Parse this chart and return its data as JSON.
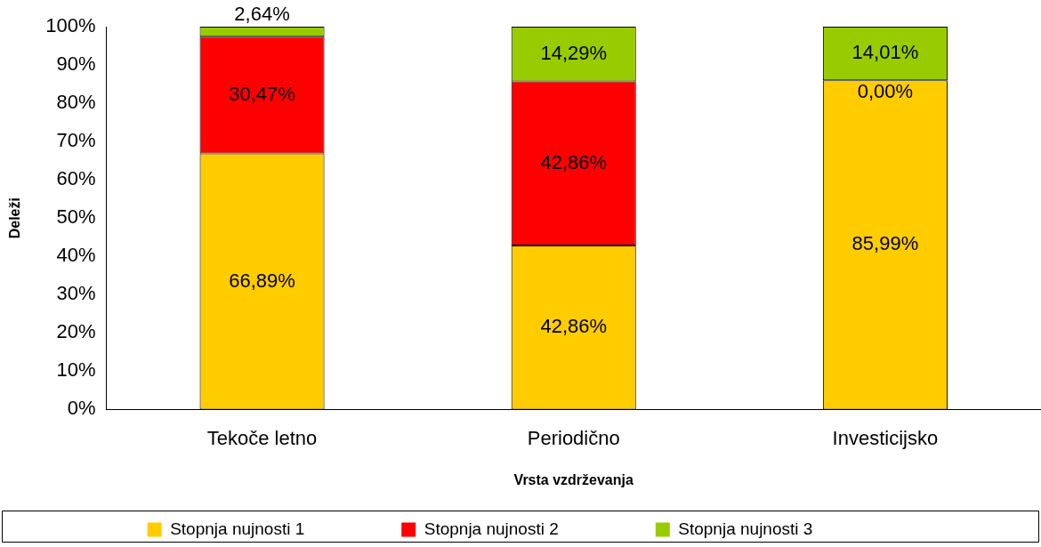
{
  "chart_data": {
    "type": "bar",
    "stacked": true,
    "xlabel": "Vrsta vzdrževanja",
    "ylabel": "Deleži",
    "categories": [
      "Tekoče letno",
      "Periodično",
      "Investicijsko"
    ],
    "series": [
      {
        "name": "Stopnja nujnosti 1",
        "color": "#ffcc00",
        "values": [
          66.89,
          42.86,
          85.99
        ],
        "value_labels": [
          "66,89%",
          "42,86%",
          "85,99%"
        ]
      },
      {
        "name": "Stopnja nujnosti 2",
        "color": "#ff0000",
        "values": [
          30.47,
          42.86,
          0
        ],
        "value_labels": [
          "30,47%",
          "42,86%",
          "0,00%"
        ]
      },
      {
        "name": "Stopnja nujnosti 3",
        "color": "#99cc00",
        "values": [
          2.64,
          14.29,
          14.01
        ],
        "value_labels": [
          "2,64%",
          "14,29%",
          "14,01%"
        ]
      }
    ],
    "ylim": [
      0,
      100
    ],
    "yticks": [
      {
        "value": 0,
        "label": "0%"
      },
      {
        "value": 10,
        "label": "10%"
      },
      {
        "value": 20,
        "label": "20%"
      },
      {
        "value": 30,
        "label": "30%"
      },
      {
        "value": 40,
        "label": "40%"
      },
      {
        "value": 50,
        "label": "50%"
      },
      {
        "value": 60,
        "label": "60%"
      },
      {
        "value": 70,
        "label": "70%"
      },
      {
        "value": 80,
        "label": "80%"
      },
      {
        "value": 90,
        "label": "90%"
      },
      {
        "value": 100,
        "label": "100%"
      }
    ],
    "grid": false,
    "legend": "bottom"
  }
}
